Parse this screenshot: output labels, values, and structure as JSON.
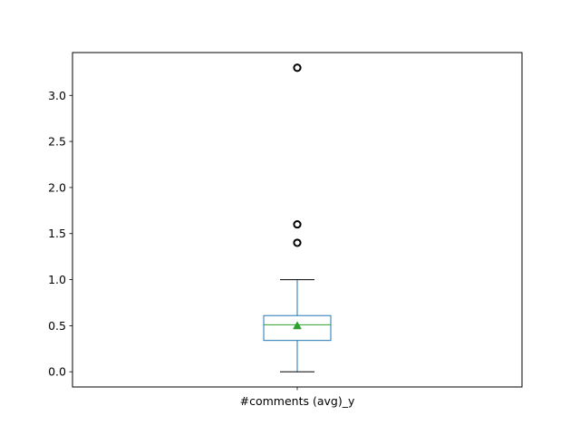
{
  "chart_data": {
    "type": "box",
    "title": "",
    "xlabel": "",
    "ylabel": "",
    "categories": [
      "#comments (avg)_y"
    ],
    "ylim": [
      -0.165,
      3.465
    ],
    "yticks": [
      0.0,
      0.5,
      1.0,
      1.5,
      2.0,
      2.5,
      3.0
    ],
    "ytick_labels": [
      "0.0",
      "0.5",
      "1.0",
      "1.5",
      "2.0",
      "2.5",
      "3.0"
    ],
    "grid": false,
    "boxes": [
      {
        "name": "#comments (avg)_y",
        "whisker_low": 0.0,
        "q1": 0.34,
        "median": 0.51,
        "mean": 0.5,
        "q3": 0.61,
        "whisker_high": 1.0,
        "outliers": [
          1.4,
          1.6,
          3.3
        ]
      }
    ],
    "colors": {
      "box": "#1f77b4",
      "median": "#2ca02c",
      "mean_marker": "#2ca02c",
      "whisker_cap": "#000000",
      "outlier": "#000000"
    }
  }
}
